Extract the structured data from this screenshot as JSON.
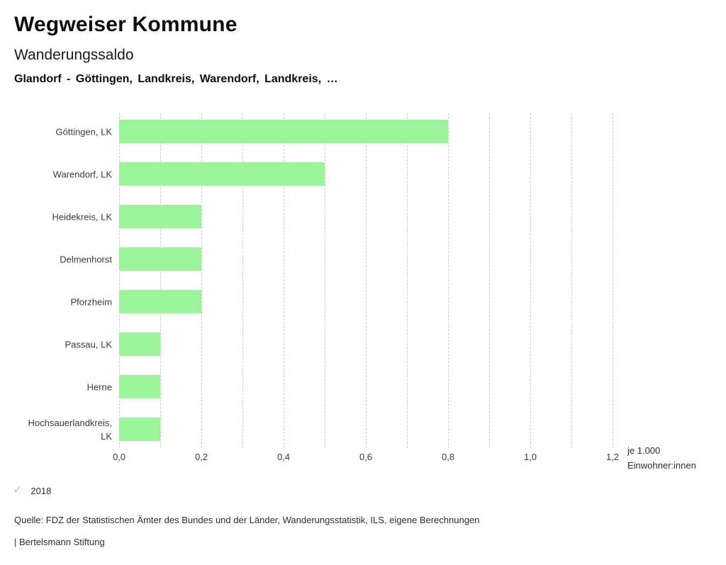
{
  "header": {
    "app_title": "Wegweiser Kommune",
    "chart_title": "Wanderungssaldo",
    "selection_line": "Glandorf - Göttingen, Landkreis, Warendorf, Landkreis, …"
  },
  "chart_data": {
    "type": "bar",
    "orientation": "horizontal",
    "title": "Wanderungssaldo",
    "categories": [
      "Göttingen, LK",
      "Warendorf, LK",
      "Heidekreis, LK",
      "Delmenhorst",
      "Pforzheim",
      "Passau, LK",
      "Herne",
      "Hochsauerlandkreis, LK"
    ],
    "series": [
      {
        "name": "2018",
        "values": [
          0.8,
          0.5,
          0.2,
          0.2,
          0.2,
          0.1,
          0.1,
          0.1
        ]
      }
    ],
    "xlabel": "je 1.000 Einwohner:innen",
    "unit_label_lines": [
      "je 1.000",
      "Einwohner:innen"
    ],
    "xlim": [
      0,
      1.2
    ],
    "xticks": [
      {
        "label": "0,0",
        "value": 0
      },
      {
        "label": "0,2",
        "value": 0.2
      },
      {
        "label": "0,4",
        "value": 0.4
      },
      {
        "label": "0,6",
        "value": 0.6
      },
      {
        "label": "0,8",
        "value": 0.8
      },
      {
        "label": "1,0",
        "value": 1.0
      },
      {
        "label": "1,2",
        "value": 1.2
      }
    ],
    "gridline_interval": 0.1,
    "grid": true,
    "bar_color": "#9af49a",
    "gridline_color": "#c9c9c9",
    "legend_position": "bottom-left"
  },
  "legend": {
    "check_icon": "✓",
    "check_color": "#93e593",
    "year_label": "2018"
  },
  "footer": {
    "source": "Quelle: FDZ der Statistischen Ämter des Bundes und der Länder, Wanderungsstatistik, ILS, eigene Berechnungen",
    "attribution": "| Bertelsmann Stiftung"
  }
}
